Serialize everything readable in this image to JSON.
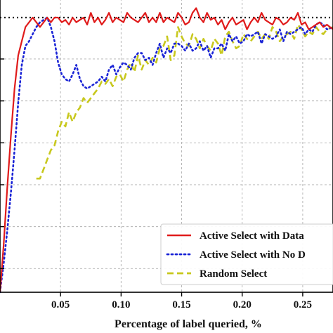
{
  "chart_data": {
    "type": "line",
    "title": "",
    "xlabel": "Percentage of label queried, %",
    "ylabel": "",
    "xlim": [
      0.0,
      0.275
    ],
    "ylim": [
      0.4,
      1.02
    ],
    "x_ticks": [
      0.05,
      0.1,
      0.15,
      0.2,
      0.25
    ],
    "x_tick_labels": [
      "0.05",
      "0.10",
      "0.15",
      "0.20",
      "0.25"
    ],
    "grid": true,
    "legend_position": "lower-right",
    "reference_line": {
      "y": 0.98,
      "style": "dotted",
      "color": "#000000"
    },
    "series": [
      {
        "name": "Active Select with Data",
        "color": "#e01b1b",
        "style": "solid",
        "x": [
          0.0,
          0.003,
          0.006,
          0.009,
          0.012,
          0.015,
          0.018,
          0.021,
          0.024,
          0.027,
          0.03,
          0.033,
          0.036,
          0.039,
          0.042,
          0.045,
          0.048,
          0.051,
          0.054,
          0.057,
          0.06,
          0.063,
          0.066,
          0.069,
          0.072,
          0.075,
          0.078,
          0.081,
          0.084,
          0.087,
          0.09,
          0.093,
          0.096,
          0.099,
          0.102,
          0.105,
          0.108,
          0.111,
          0.114,
          0.117,
          0.12,
          0.123,
          0.126,
          0.129,
          0.132,
          0.135,
          0.138,
          0.141,
          0.144,
          0.147,
          0.15,
          0.153,
          0.156,
          0.159,
          0.162,
          0.165,
          0.168,
          0.171,
          0.174,
          0.177,
          0.18,
          0.183,
          0.186,
          0.189,
          0.192,
          0.195,
          0.198,
          0.201,
          0.204,
          0.207,
          0.21,
          0.213,
          0.216,
          0.219,
          0.222,
          0.225,
          0.228,
          0.231,
          0.234,
          0.237,
          0.24,
          0.243,
          0.246,
          0.249,
          0.252,
          0.255,
          0.258,
          0.261,
          0.264,
          0.267,
          0.27,
          0.275
        ],
        "y": [
          0.4,
          0.5,
          0.62,
          0.73,
          0.83,
          0.9,
          0.93,
          0.96,
          0.97,
          0.98,
          0.97,
          0.96,
          0.97,
          0.98,
          0.97,
          0.98,
          0.98,
          0.97,
          0.975,
          0.965,
          0.98,
          0.97,
          0.975,
          0.98,
          0.965,
          0.99,
          0.97,
          0.98,
          0.965,
          0.975,
          0.99,
          0.97,
          0.98,
          0.975,
          0.97,
          0.99,
          0.98,
          0.975,
          0.97,
          0.98,
          0.99,
          0.97,
          0.98,
          0.97,
          0.99,
          0.97,
          0.98,
          0.975,
          0.97,
          0.99,
          0.98,
          0.965,
          0.97,
          0.99,
          1.0,
          0.98,
          0.97,
          0.99,
          0.975,
          0.98,
          0.965,
          0.975,
          0.955,
          0.97,
          0.98,
          0.965,
          0.97,
          0.975,
          0.955,
          0.97,
          0.98,
          0.97,
          0.99,
          0.975,
          0.97,
          0.965,
          0.98,
          0.975,
          0.965,
          0.97,
          0.98,
          0.975,
          0.99,
          0.965,
          0.97,
          0.955,
          0.96,
          0.965,
          0.97,
          0.96,
          0.965,
          0.955
        ]
      },
      {
        "name": "Active Select with No D",
        "color": "#1a24d6",
        "style": "dotted",
        "x": [
          0.0,
          0.003,
          0.006,
          0.009,
          0.012,
          0.015,
          0.018,
          0.021,
          0.024,
          0.027,
          0.03,
          0.033,
          0.036,
          0.039,
          0.042,
          0.045,
          0.048,
          0.051,
          0.054,
          0.057,
          0.06,
          0.063,
          0.066,
          0.069,
          0.072,
          0.075,
          0.078,
          0.081,
          0.084,
          0.087,
          0.09,
          0.093,
          0.096,
          0.099,
          0.102,
          0.105,
          0.108,
          0.111,
          0.114,
          0.117,
          0.12,
          0.123,
          0.126,
          0.129,
          0.132,
          0.135,
          0.138,
          0.141,
          0.144,
          0.147,
          0.15,
          0.153,
          0.156,
          0.159,
          0.162,
          0.165,
          0.168,
          0.171,
          0.174,
          0.177,
          0.18,
          0.183,
          0.186,
          0.189,
          0.192,
          0.195,
          0.198,
          0.201,
          0.204,
          0.207,
          0.21,
          0.213,
          0.216,
          0.219,
          0.222,
          0.225,
          0.228,
          0.231,
          0.234,
          0.237,
          0.24,
          0.243,
          0.246,
          0.249,
          0.252,
          0.255,
          0.258,
          0.261,
          0.264,
          0.267,
          0.27,
          0.275
        ],
        "y": [
          0.4,
          0.46,
          0.53,
          0.61,
          0.7,
          0.8,
          0.88,
          0.92,
          0.93,
          0.945,
          0.96,
          0.97,
          0.975,
          0.98,
          0.96,
          0.93,
          0.885,
          0.86,
          0.85,
          0.845,
          0.86,
          0.88,
          0.85,
          0.835,
          0.83,
          0.835,
          0.84,
          0.845,
          0.855,
          0.845,
          0.87,
          0.88,
          0.86,
          0.875,
          0.885,
          0.88,
          0.87,
          0.895,
          0.905,
          0.905,
          0.89,
          0.895,
          0.88,
          0.905,
          0.925,
          0.895,
          0.915,
          0.905,
          0.925,
          0.925,
          0.92,
          0.91,
          0.925,
          0.91,
          0.915,
          0.93,
          0.91,
          0.92,
          0.895,
          0.915,
          0.915,
          0.925,
          0.91,
          0.945,
          0.93,
          0.94,
          0.925,
          0.93,
          0.945,
          0.94,
          0.945,
          0.95,
          0.925,
          0.945,
          0.94,
          0.935,
          0.94,
          0.955,
          0.93,
          0.95,
          0.945,
          0.95,
          0.955,
          0.96,
          0.945,
          0.955,
          0.95,
          0.965,
          0.97,
          0.965,
          0.955,
          0.96
        ]
      },
      {
        "name": "Random Select",
        "color": "#c8c81e",
        "style": "dashed",
        "x": [
          0.03,
          0.033,
          0.036,
          0.039,
          0.042,
          0.045,
          0.048,
          0.051,
          0.054,
          0.057,
          0.06,
          0.063,
          0.066,
          0.069,
          0.072,
          0.075,
          0.078,
          0.081,
          0.084,
          0.087,
          0.09,
          0.093,
          0.096,
          0.099,
          0.102,
          0.105,
          0.108,
          0.111,
          0.114,
          0.117,
          0.12,
          0.123,
          0.126,
          0.129,
          0.132,
          0.135,
          0.138,
          0.141,
          0.144,
          0.147,
          0.15,
          0.153,
          0.156,
          0.159,
          0.162,
          0.165,
          0.168,
          0.171,
          0.174,
          0.177,
          0.18,
          0.183,
          0.186,
          0.189,
          0.192,
          0.195,
          0.198,
          0.201,
          0.204,
          0.207,
          0.21,
          0.213,
          0.216,
          0.219,
          0.222,
          0.225,
          0.228,
          0.231,
          0.234,
          0.237,
          0.24,
          0.243,
          0.246,
          0.249,
          0.252,
          0.255,
          0.258,
          0.261,
          0.264,
          0.267,
          0.27,
          0.275
        ],
        "y": [
          0.64,
          0.64,
          0.66,
          0.68,
          0.7,
          0.71,
          0.74,
          0.76,
          0.75,
          0.78,
          0.76,
          0.78,
          0.79,
          0.81,
          0.8,
          0.81,
          0.82,
          0.83,
          0.845,
          0.84,
          0.85,
          0.835,
          0.855,
          0.86,
          0.845,
          0.87,
          0.885,
          0.865,
          0.9,
          0.87,
          0.89,
          0.88,
          0.895,
          0.885,
          0.915,
          0.92,
          0.94,
          0.89,
          0.9,
          0.96,
          0.94,
          0.925,
          0.92,
          0.945,
          0.935,
          0.915,
          0.935,
          0.92,
          0.91,
          0.935,
          0.925,
          0.9,
          0.94,
          0.95,
          0.93,
          0.915,
          0.92,
          0.945,
          0.935,
          0.93,
          0.94,
          0.95,
          0.935,
          0.945,
          0.935,
          0.96,
          0.95,
          0.93,
          0.94,
          0.945,
          0.95,
          0.935,
          0.965,
          0.955,
          0.94,
          0.95,
          0.945,
          0.96,
          0.95,
          0.945,
          0.955,
          0.96
        ]
      }
    ]
  }
}
